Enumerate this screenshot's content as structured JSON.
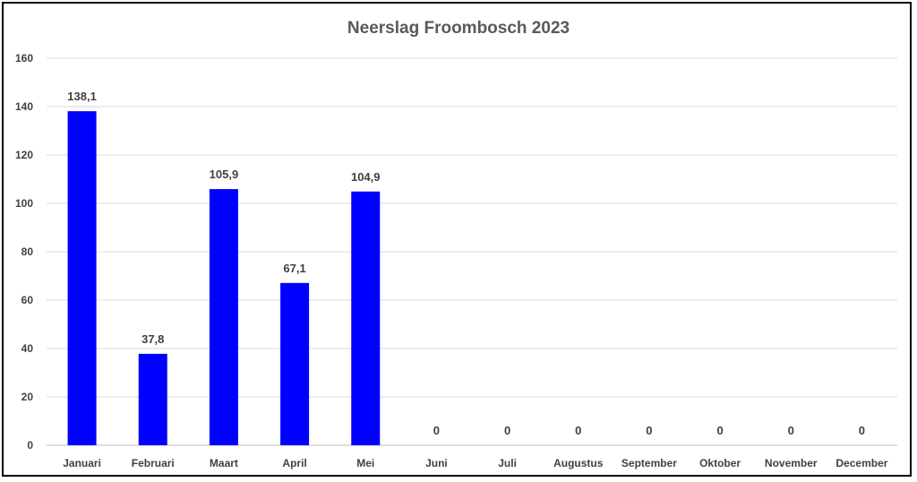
{
  "chart_data": {
    "type": "bar",
    "title": "Neerslag Froombosch 2023",
    "xlabel": "",
    "ylabel": "",
    "categories": [
      "Januari",
      "Februari",
      "Maart",
      "April",
      "Mei",
      "Juni",
      "Juli",
      "Augustus",
      "September",
      "Oktober",
      "November",
      "December"
    ],
    "values": [
      138.1,
      37.8,
      105.9,
      67.1,
      104.9,
      0,
      0,
      0,
      0,
      0,
      0,
      0
    ],
    "data_labels": [
      "138,1",
      "37,8",
      "105,9",
      "67,1",
      "104,9",
      "0",
      "0",
      "0",
      "0",
      "0",
      "0",
      "0"
    ],
    "ylim": [
      0,
      160
    ],
    "yticks": [
      0,
      20,
      40,
      60,
      80,
      100,
      120,
      140,
      160
    ],
    "grid": true,
    "legend": "none",
    "bar_color": "#0000FF",
    "gridline_color": "#D9D9D9"
  }
}
